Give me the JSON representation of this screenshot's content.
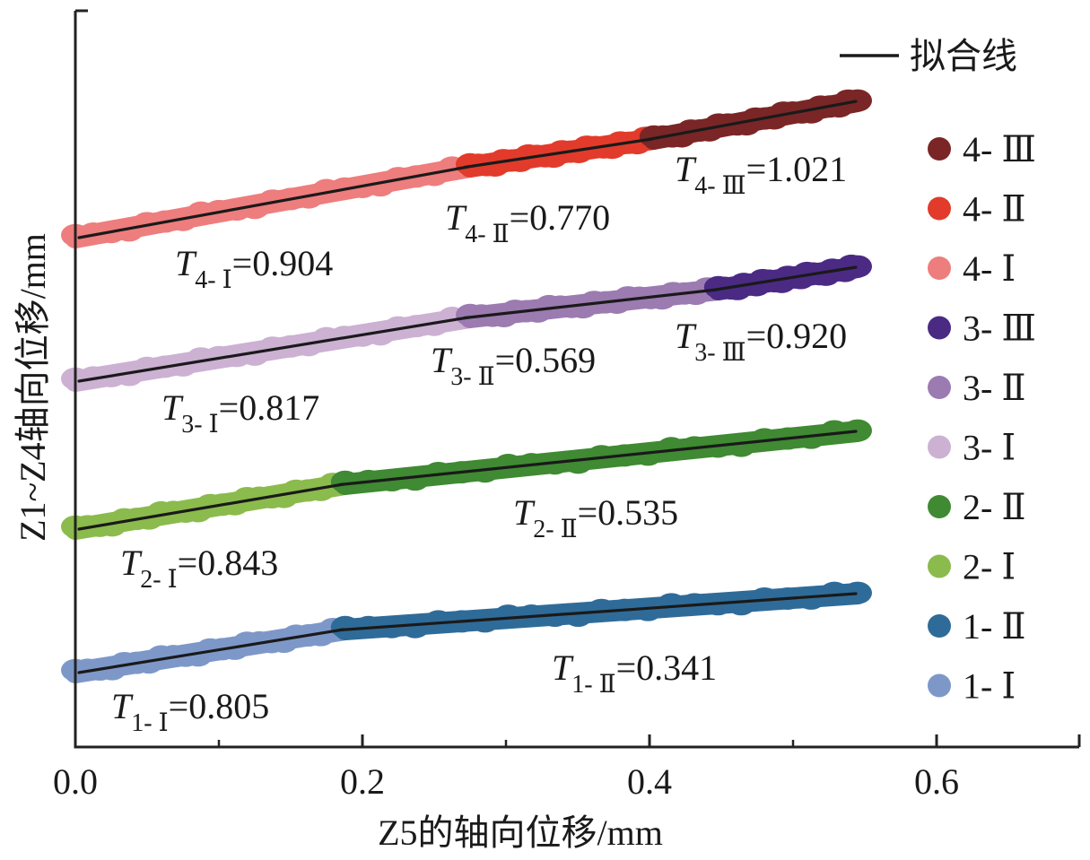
{
  "chart_data": {
    "type": "scatter",
    "xlabel": "Z5的轴向位移/mm",
    "ylabel": "Z1~Z4轴向位移/mm",
    "x_ticks": [
      "0.0",
      "0.2",
      "0.4",
      "0.6"
    ],
    "x_tick_values": [
      0.0,
      0.2,
      0.4,
      0.6
    ],
    "xlim": [
      0.0,
      0.7
    ],
    "fit_line_label": "拟合线",
    "series": [
      {
        "name": "4- Ⅲ",
        "color": "#7a2626",
        "x_start": 0.403,
        "x_end": 0.545
      },
      {
        "name": "4- Ⅱ",
        "color": "#e23b2b",
        "x_start": 0.275,
        "x_end": 0.403
      },
      {
        "name": "4- Ⅰ",
        "color": "#ee7d7d",
        "x_start": 0.0,
        "x_end": 0.275
      },
      {
        "name": "3- Ⅲ",
        "color": "#4b2a84",
        "x_start": 0.448,
        "x_end": 0.545
      },
      {
        "name": "3- Ⅱ",
        "color": "#9c7bb1",
        "x_start": 0.275,
        "x_end": 0.448
      },
      {
        "name": "3- Ⅰ",
        "color": "#ccb1d3",
        "x_start": 0.0,
        "x_end": 0.275
      },
      {
        "name": "2- Ⅱ",
        "color": "#3f8a32",
        "x_start": 0.188,
        "x_end": 0.545
      },
      {
        "name": "2- Ⅰ",
        "color": "#8bbb4c",
        "x_start": 0.0,
        "x_end": 0.188
      },
      {
        "name": "1- Ⅱ",
        "color": "#2f6b98",
        "x_start": 0.188,
        "x_end": 0.545
      },
      {
        "name": "1- Ⅰ",
        "color": "#7d98c8",
        "x_start": 0.0,
        "x_end": 0.188
      }
    ],
    "annotations": [
      {
        "sub": "4- Ⅲ",
        "value": "=1.021"
      },
      {
        "sub": "4- Ⅱ",
        "value": "=0.770"
      },
      {
        "sub": "4- Ⅰ",
        "value": "=0.904"
      },
      {
        "sub": "3- Ⅲ",
        "value": "=0.920"
      },
      {
        "sub": "3- Ⅱ",
        "value": "=0.569"
      },
      {
        "sub": "3- Ⅰ",
        "value": "=0.817"
      },
      {
        "sub": "2- Ⅱ",
        "value": "=0.535"
      },
      {
        "sub": "2- Ⅰ",
        "value": "=0.843"
      },
      {
        "sub": "1- Ⅱ",
        "value": "=0.341"
      },
      {
        "sub": "1- Ⅰ",
        "value": "=0.805"
      }
    ],
    "annotation_symbol": "T"
  }
}
